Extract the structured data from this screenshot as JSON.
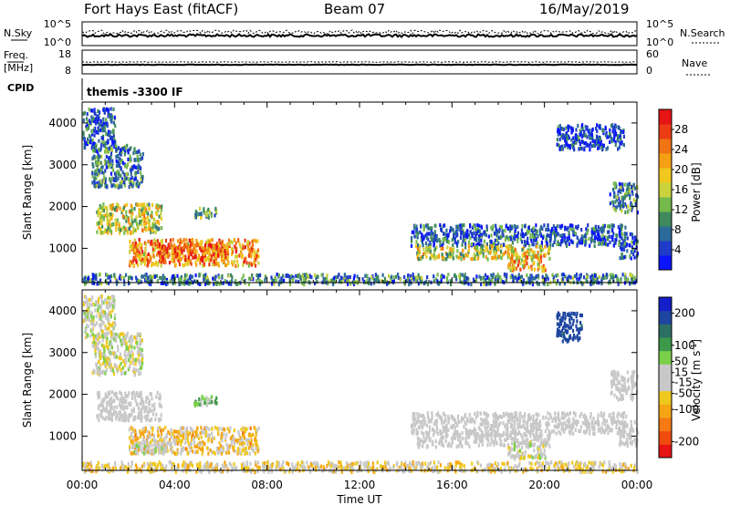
{
  "header": {
    "title": "Fort Hays East (fitACF)",
    "beam": "Beam 07",
    "date": "16/May/2019"
  },
  "summary": {
    "nsky_label": "N.Sky",
    "nsearch_label": "N.Search",
    "freq_label_1": "Freq.",
    "freq_label_2": "[MHz]",
    "nave_label": "Nave",
    "cpid_label": "CPID",
    "cpid_value": "themis -3300 IF",
    "noise_left_ticks": [
      "10^5",
      "10^0"
    ],
    "noise_right_ticks": [
      "10^5",
      "10^0"
    ],
    "freq_ticks": [
      "18",
      "8"
    ],
    "nave_ticks": [
      "60",
      "0"
    ]
  },
  "chart_data": [
    {
      "type": "heatmap",
      "name": "power",
      "xlabel": "",
      "ylabel": "Slant Range [km]",
      "y_ticks": [
        "4000",
        "3000",
        "2000",
        "1000"
      ],
      "x_range": [
        0,
        24
      ],
      "y_range": [
        180,
        4500
      ],
      "colorbar": {
        "label": "Power [dB]",
        "ticks": [
          "28",
          "24",
          "20",
          "16",
          "12",
          "8",
          "4"
        ],
        "range": [
          0,
          32
        ],
        "colors": [
          "#0a14ff",
          "#1e3cc8",
          "#2c6a9a",
          "#3f8a5c",
          "#74ba4c",
          "#c8d23c",
          "#f0c81e",
          "#f5a014",
          "#f07314",
          "#eb3c14",
          "#e61414"
        ]
      },
      "regions": [
        {
          "t": [
            0.0,
            1.4
          ],
          "r": [
            3400,
            4400
          ],
          "v": 8
        },
        {
          "t": [
            0.4,
            2.6
          ],
          "r": [
            2500,
            3500
          ],
          "v": 10
        },
        {
          "t": [
            0.6,
            3.4
          ],
          "r": [
            1400,
            2100
          ],
          "v": 18
        },
        {
          "t": [
            2.0,
            7.6
          ],
          "r": [
            620,
            1250
          ],
          "v": 24
        },
        {
          "t": [
            3.2,
            6.2
          ],
          "r": [
            720,
            1150
          ],
          "v": 28
        },
        {
          "t": [
            4.8,
            5.8
          ],
          "r": [
            1750,
            2000
          ],
          "v": 12
        },
        {
          "t": [
            0.0,
            24.0
          ],
          "r": [
            180,
            420
          ],
          "v": 10
        },
        {
          "t": [
            14.2,
            23.5
          ],
          "r": [
            1100,
            1600
          ],
          "v": 8
        },
        {
          "t": [
            14.4,
            20.2
          ],
          "r": [
            780,
            1100
          ],
          "v": 18
        },
        {
          "t": [
            18.4,
            20.0
          ],
          "r": [
            500,
            900
          ],
          "v": 22
        },
        {
          "t": [
            20.5,
            23.4
          ],
          "r": [
            3400,
            4000
          ],
          "v": 6
        },
        {
          "t": [
            22.8,
            24.0
          ],
          "r": [
            1900,
            2600
          ],
          "v": 10
        },
        {
          "t": [
            23.2,
            24.0
          ],
          "r": [
            800,
            1400
          ],
          "v": 8
        }
      ]
    },
    {
      "type": "heatmap",
      "name": "velocity",
      "xlabel": "Time UT",
      "ylabel": "Slant Range [km]",
      "x_ticks": [
        "00:00",
        "04:00",
        "08:00",
        "12:00",
        "16:00",
        "20:00",
        "00:00"
      ],
      "y_ticks": [
        "4000",
        "3000",
        "2000",
        "1000"
      ],
      "x_range": [
        0,
        24
      ],
      "y_range": [
        180,
        4500
      ],
      "colorbar": {
        "label": "Velocity [m s",
        "label_sup": "-1",
        "label_end": "]",
        "ticks": [
          "200",
          "100",
          "50",
          "15",
          "-15",
          "-50",
          "-100",
          "-200"
        ],
        "range": [
          -250,
          250
        ],
        "colors": [
          "#e61414",
          "#f04b0f",
          "#f57a14",
          "#f5a514",
          "#f0c81e",
          "#c8c8c8",
          "#c8c8c8",
          "#7ad04a",
          "#3c9a4a",
          "#2c7064",
          "#1e46a0",
          "#141ec8"
        ]
      },
      "regions": [
        {
          "t": [
            0.0,
            1.4
          ],
          "r": [
            3400,
            4400
          ],
          "v": 0,
          "mix": 1
        },
        {
          "t": [
            0.4,
            2.6
          ],
          "r": [
            2500,
            3500
          ],
          "v": 0,
          "mix": 1
        },
        {
          "t": [
            0.6,
            3.4
          ],
          "r": [
            1400,
            2100
          ],
          "v": 0,
          "mix": 0
        },
        {
          "t": [
            2.0,
            7.6
          ],
          "r": [
            620,
            1250
          ],
          "v": -60,
          "mix": 1
        },
        {
          "t": [
            2.2,
            3.8
          ],
          "r": [
            620,
            900
          ],
          "v": 30,
          "mix": 0
        },
        {
          "t": [
            4.8,
            5.8
          ],
          "r": [
            1750,
            2000
          ],
          "v": 60,
          "mix": 1
        },
        {
          "t": [
            0.0,
            24.0
          ],
          "r": [
            180,
            420
          ],
          "v": -40,
          "mix": 1
        },
        {
          "t": [
            14.2,
            23.5
          ],
          "r": [
            1100,
            1600
          ],
          "v": 0,
          "mix": 0
        },
        {
          "t": [
            14.4,
            20.2
          ],
          "r": [
            780,
            1100
          ],
          "v": 0,
          "mix": 0
        },
        {
          "t": [
            18.4,
            20.0
          ],
          "r": [
            500,
            900
          ],
          "v": 0,
          "mix": 1
        },
        {
          "t": [
            20.5,
            21.6
          ],
          "r": [
            3300,
            4000
          ],
          "v": 180,
          "mix": 0
        },
        {
          "t": [
            22.8,
            24.0
          ],
          "r": [
            1900,
            2600
          ],
          "v": 0,
          "mix": 0
        },
        {
          "t": [
            23.2,
            24.0
          ],
          "r": [
            800,
            1400
          ],
          "v": 0,
          "mix": 0
        }
      ]
    }
  ]
}
